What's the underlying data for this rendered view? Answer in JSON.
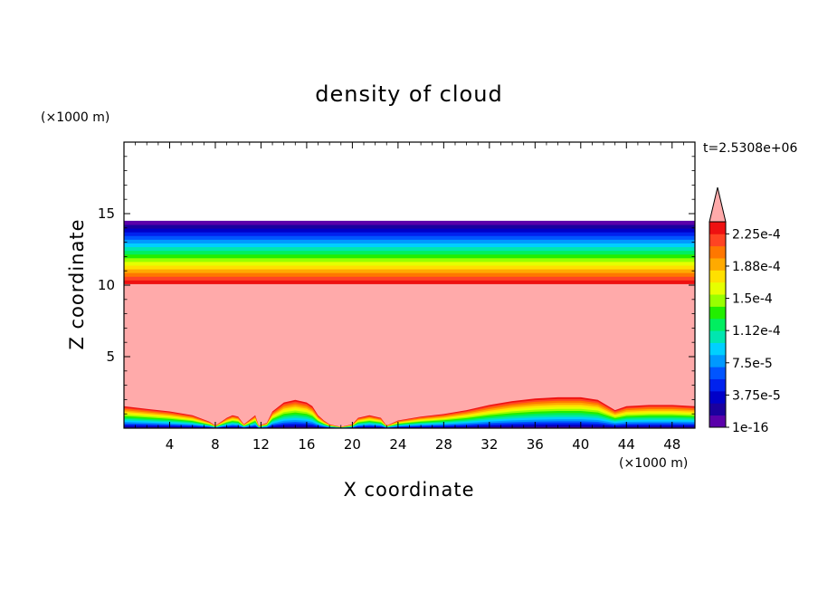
{
  "chart_data": {
    "type": "heatmap",
    "title": "density of cloud",
    "xlabel": "X coordinate",
    "ylabel": "Z coordinate",
    "x_unit": "(×1000 m)",
    "y_unit": "(×1000 m)",
    "time_label": "t=2.5308e+06",
    "xlim": [
      0,
      50
    ],
    "ylim": [
      0,
      20
    ],
    "x_ticks": [
      4,
      8,
      12,
      16,
      20,
      24,
      28,
      32,
      36,
      40,
      44,
      48
    ],
    "y_ticks": [
      5,
      10,
      15
    ],
    "colorbar": {
      "colors": [
        "#5a00aa",
        "#1b009e",
        "#0000c8",
        "#0022ee",
        "#0055ff",
        "#0099ff",
        "#00d0ff",
        "#00e6b0",
        "#00ee60",
        "#22ee00",
        "#99ff00",
        "#e6ff00",
        "#ffe000",
        "#ffaa00",
        "#ff7700",
        "#ff4422",
        "#ee1111"
      ],
      "over_color": "#ffaaaa",
      "tick_labels": [
        "1e-16",
        "3.75e-5",
        "7.5e-5",
        "1.12e-4",
        "1.5e-4",
        "1.88e-4",
        "2.25e-4"
      ]
    },
    "layers": {
      "upper_band_bottom_km": 9.5,
      "upper_band_top_km": 14.5,
      "cloud_core_top_km": 9.5,
      "ground_cloud_edge": [
        [
          0,
          1.7
        ],
        [
          2,
          1.5
        ],
        [
          4,
          1.3
        ],
        [
          6,
          1.0
        ],
        [
          7.5,
          0.5
        ],
        [
          8,
          0.2
        ],
        [
          9,
          0.8
        ],
        [
          9.5,
          1.0
        ],
        [
          10,
          0.9
        ],
        [
          10.5,
          0.3
        ],
        [
          11.5,
          1.0
        ],
        [
          11.8,
          0.2
        ],
        [
          12.5,
          0.4
        ],
        [
          13,
          1.3
        ],
        [
          14,
          2.0
        ],
        [
          15,
          2.2
        ],
        [
          16,
          2.0
        ],
        [
          16.5,
          1.7
        ],
        [
          17,
          1.0
        ],
        [
          17.5,
          0.6
        ],
        [
          18,
          0.3
        ],
        [
          19,
          0.1
        ],
        [
          20,
          0.3
        ],
        [
          20.5,
          0.8
        ],
        [
          21.5,
          1.0
        ],
        [
          22.5,
          0.8
        ],
        [
          23,
          0.2
        ],
        [
          24,
          0.6
        ],
        [
          26,
          0.9
        ],
        [
          28,
          1.1
        ],
        [
          30,
          1.4
        ],
        [
          32,
          1.8
        ],
        [
          34,
          2.1
        ],
        [
          36,
          2.3
        ],
        [
          38,
          2.4
        ],
        [
          40,
          2.4
        ],
        [
          41.5,
          2.2
        ],
        [
          43,
          1.4
        ],
        [
          44,
          1.7
        ],
        [
          46,
          1.8
        ],
        [
          48,
          1.8
        ],
        [
          50,
          1.7
        ]
      ]
    }
  }
}
